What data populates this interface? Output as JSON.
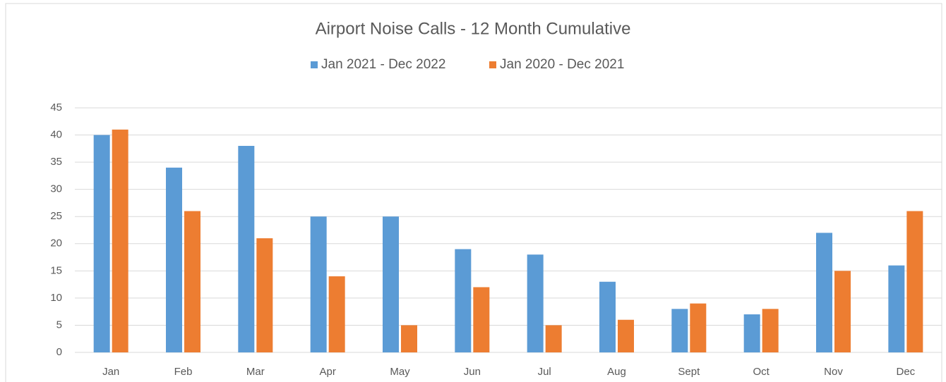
{
  "chart_data": {
    "type": "bar",
    "title": "Airport Noise Calls  - 12 Month Cumulative",
    "categories": [
      "Jan",
      "Feb",
      "Mar",
      "Apr",
      "May",
      "Jun",
      "Jul",
      "Aug",
      "Sept",
      "Oct",
      "Nov",
      "Dec"
    ],
    "series": [
      {
        "name": "Jan 2021 - Dec 2022",
        "color": "#5b9bd5",
        "values": [
          40,
          34,
          38,
          25,
          25,
          19,
          18,
          13,
          8,
          7,
          22,
          16
        ]
      },
      {
        "name": "Jan 2020 - Dec 2021",
        "color": "#ed7d31",
        "values": [
          41,
          26,
          21,
          14,
          5,
          12,
          5,
          6,
          9,
          8,
          15,
          26
        ]
      }
    ],
    "ylim": [
      0,
      45
    ],
    "yticks": [
      0,
      5,
      10,
      15,
      20,
      25,
      30,
      35,
      40,
      45
    ],
    "grid": true,
    "legend": "top"
  }
}
